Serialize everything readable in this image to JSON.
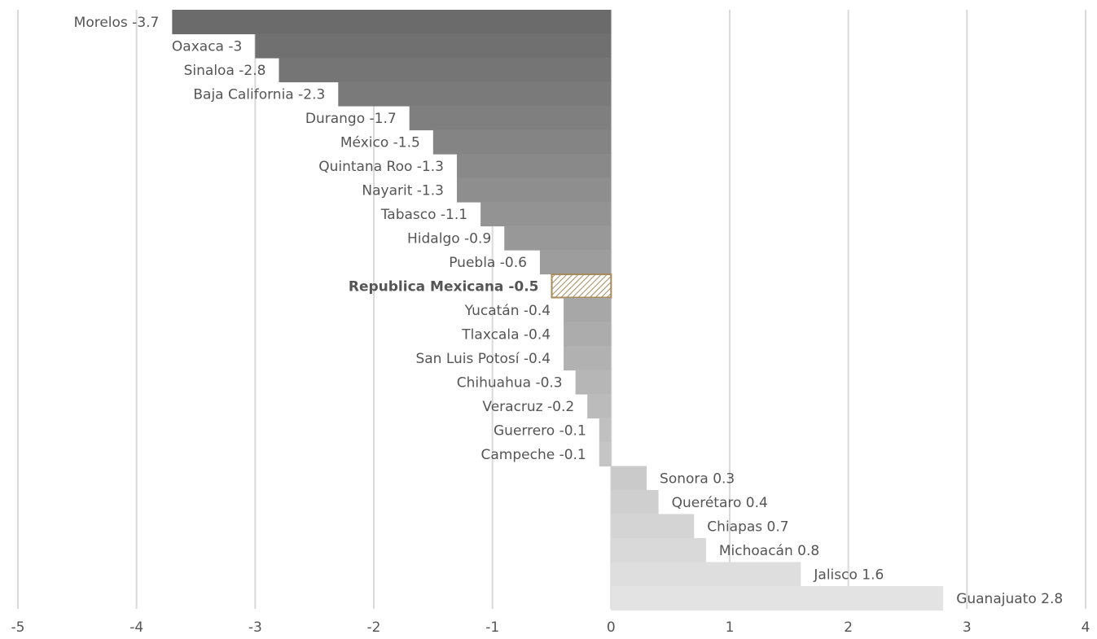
{
  "chart_data": {
    "type": "bar",
    "orientation": "horizontal",
    "xlim": [
      -5,
      4
    ],
    "x_ticks": [
      "-5",
      "-4",
      "-3",
      "-2",
      "-1",
      "0",
      "1",
      "2",
      "3",
      "4"
    ],
    "grid": "vertical",
    "colors": {
      "bar_dark": "#6b6b6b",
      "bar_light": "#e3e3e3",
      "highlight_outline": "#a88b5c",
      "highlight_hatch": "#a88b5c",
      "label": "#555555",
      "highlight_label": "#555555",
      "grid": "#d9d9d9"
    },
    "highlight": "Republica Mexicana",
    "categories": [
      "Morelos",
      "Oaxaca",
      "Sinaloa",
      "Baja California",
      "Durango",
      "México",
      "Quintana Roo",
      "Nayarit",
      "Tabasco",
      "Hidalgo",
      "Puebla",
      "Republica Mexicana",
      "Yucatán",
      "Tlaxcala",
      "San Luis Potosí",
      "Chihuahua",
      "Veracruz",
      "Guerrero",
      "Campeche",
      "Sonora",
      "Querétaro",
      "Chiapas",
      "Michoacán",
      "Jalisco",
      "Guanajuato"
    ],
    "values": [
      -3.7,
      -3,
      -2.8,
      -2.3,
      -1.7,
      -1.5,
      -1.3,
      -1.3,
      -1.1,
      -0.9,
      -0.6,
      -0.5,
      -0.4,
      -0.4,
      -0.4,
      -0.3,
      -0.2,
      -0.1,
      -0.1,
      0.3,
      0.4,
      0.7,
      0.8,
      1.6,
      2.8
    ],
    "labels": [
      "Morelos -3.7",
      "Oaxaca -3",
      "Sinaloa -2.8",
      "Baja California -2.3",
      "Durango -1.7",
      "México -1.5",
      "Quintana Roo -1.3",
      "Nayarit -1.3",
      "Tabasco -1.1",
      "Hidalgo -0.9",
      "Puebla -0.6",
      "Republica Mexicana -0.5",
      "Yucatán -0.4",
      "Tlaxcala -0.4",
      "San Luis Potosí -0.4",
      "Chihuahua -0.3",
      "Veracruz -0.2",
      "Guerrero -0.1",
      "Campeche -0.1",
      "Sonora 0.3",
      "Querétaro 0.4",
      "Chiapas 0.7",
      "Michoacán 0.8",
      "Jalisco 1.6",
      "Guanajuato 2.8"
    ]
  }
}
